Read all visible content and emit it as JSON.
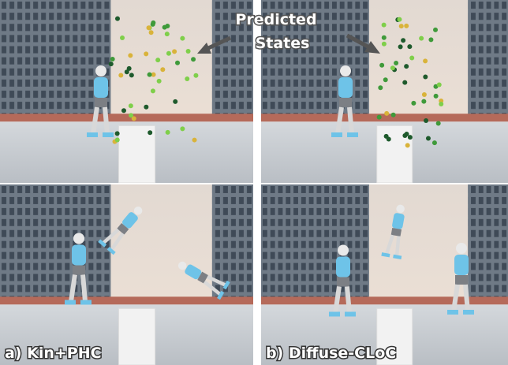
{
  "annotation": {
    "lines": [
      "Predicted",
      "States"
    ]
  },
  "panels": [
    {
      "label": "a) Kin+PHC"
    },
    {
      "label": "b) Diffuse-CLoC"
    }
  ]
}
